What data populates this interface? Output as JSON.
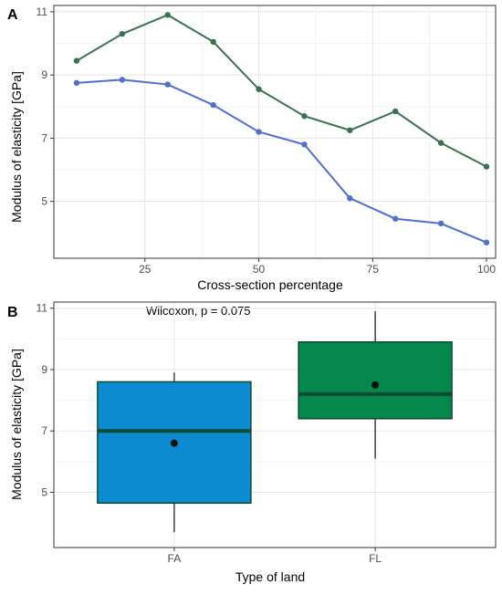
{
  "chart_data": [
    {
      "panel": "A",
      "type": "line",
      "xlabel": "Cross-section percentage",
      "ylabel": "Modulus of elasticity [GPa]",
      "xlim": [
        5,
        102
      ],
      "ylim": [
        3.2,
        11.2
      ],
      "xticks": [
        25,
        50,
        75,
        100
      ],
      "yticks": [
        5,
        7,
        9,
        11
      ],
      "grid": true,
      "x": [
        10,
        20,
        30,
        40,
        50,
        60,
        70,
        80,
        90,
        100
      ],
      "series": [
        {
          "color": "#3a7150",
          "values": [
            9.45,
            10.3,
            10.9,
            10.05,
            8.55,
            7.7,
            7.25,
            7.85,
            6.85,
            6.1
          ]
        },
        {
          "color": "#5170c9",
          "values": [
            8.75,
            8.85,
            8.7,
            8.05,
            7.2,
            6.8,
            5.1,
            4.45,
            4.3,
            3.7
          ]
        }
      ]
    },
    {
      "panel": "B",
      "type": "box",
      "xlabel": "Type of land",
      "ylabel": "Modulus of elasticity [GPa]",
      "ylim": [
        3.2,
        11.2
      ],
      "yticks": [
        5,
        7,
        9,
        11
      ],
      "grid": true,
      "annotation": "Wilcoxon, p = 0.075",
      "categories": [
        "FA",
        "FL"
      ],
      "boxes": [
        {
          "category": "FA",
          "color": "#0d8bd0",
          "whisker_low": 3.7,
          "q1": 4.65,
          "median": 7.0,
          "q3": 8.6,
          "whisker_high": 8.9,
          "mean": 6.6
        },
        {
          "category": "FL",
          "color": "#04874b",
          "whisker_low": 6.1,
          "q1": 7.4,
          "median": 8.2,
          "q3": 9.9,
          "whisker_high": 10.9,
          "mean": 8.5
        }
      ]
    }
  ]
}
